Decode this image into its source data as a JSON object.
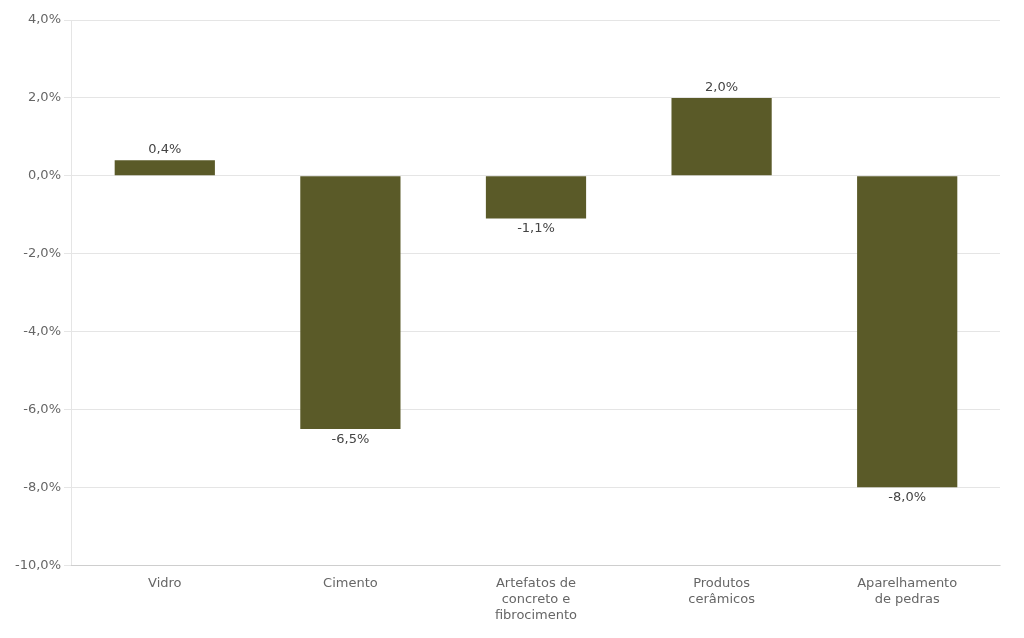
{
  "chart_data": {
    "type": "bar",
    "categories": [
      "Vidro",
      "Cimento",
      "Artefatos de\nconcreto e\nfibrocimento",
      "Produtos\ncerâmicos",
      "Aparelhamento\nde pedras"
    ],
    "values": [
      0.4,
      -6.5,
      -1.1,
      2.0,
      -8.0
    ],
    "value_labels": [
      "0,4%",
      "-6,5%",
      "-1,1%",
      "2,0%",
      "-8,0%"
    ],
    "data_labels": true,
    "color": "#5a5a28",
    "ylim": [
      -10.0,
      4.0
    ],
    "yticks": [
      {
        "value": -10.0,
        "label": "-10,0%"
      },
      {
        "value": -8.0,
        "label": "-8,0%"
      },
      {
        "value": -6.0,
        "label": "-6,0%"
      },
      {
        "value": -4.0,
        "label": "-4,0%"
      },
      {
        "value": -2.0,
        "label": "-2,0%"
      },
      {
        "value": 0.0,
        "label": "0,0%"
      },
      {
        "value": 2.0,
        "label": "2,0%"
      },
      {
        "value": 4.0,
        "label": "4,0%"
      }
    ],
    "grid": true
  }
}
